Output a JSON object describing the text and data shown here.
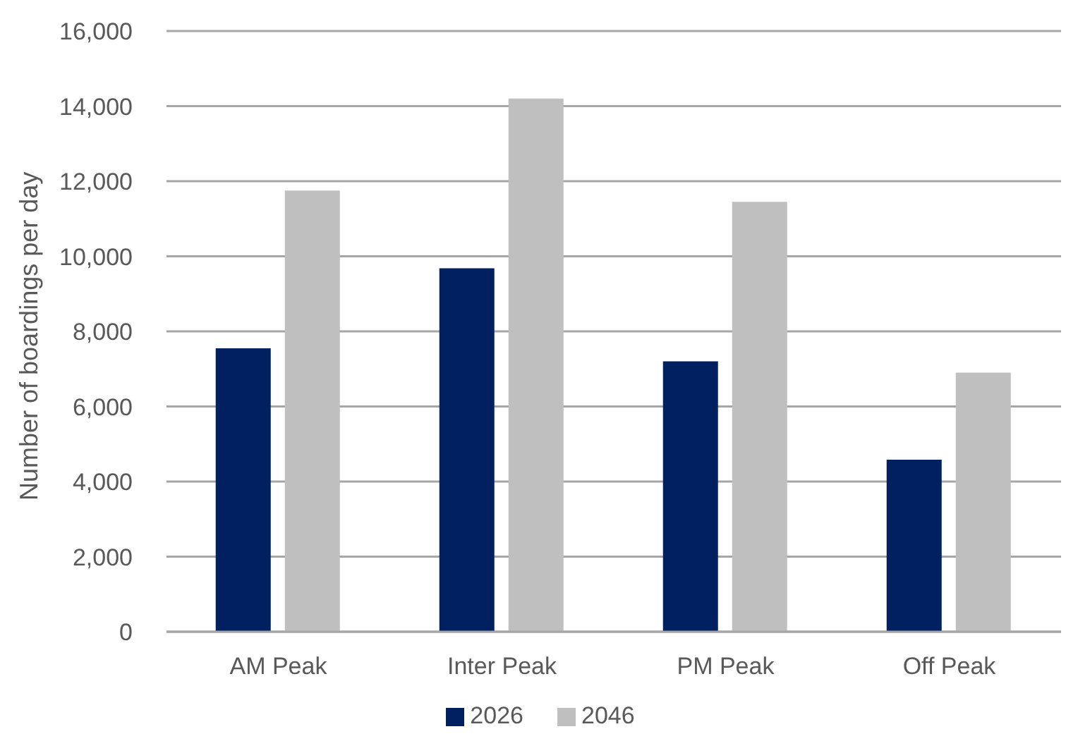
{
  "chart_data": {
    "type": "bar",
    "ylabel": "Number of boardings per day",
    "categories": [
      "AM Peak",
      "Inter Peak",
      "PM Peak",
      "Off Peak"
    ],
    "series": [
      {
        "name": "2026",
        "color": "#002060",
        "values": [
          7550,
          9680,
          7200,
          4580
        ]
      },
      {
        "name": "2046",
        "color": "#bfbfbf",
        "values": [
          11750,
          14200,
          11450,
          6900
        ]
      }
    ],
    "ylim": [
      0,
      16000
    ],
    "yticks": [
      {
        "value": 0,
        "label": "0"
      },
      {
        "value": 2000,
        "label": "2,000"
      },
      {
        "value": 4000,
        "label": "4,000"
      },
      {
        "value": 6000,
        "label": "6,000"
      },
      {
        "value": 8000,
        "label": "8,000"
      },
      {
        "value": 10000,
        "label": "10,000"
      },
      {
        "value": 12000,
        "label": "12,000"
      },
      {
        "value": 14000,
        "label": "14,000"
      },
      {
        "value": 16000,
        "label": "16,000"
      }
    ],
    "grid": "y",
    "legend": "bottom"
  }
}
